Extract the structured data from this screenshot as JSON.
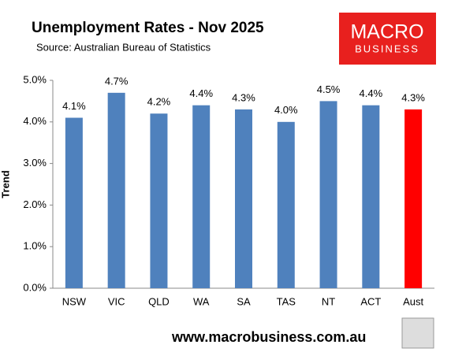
{
  "chart_data": {
    "type": "bar",
    "title": "Unemployment Rates - Nov 2025",
    "subtitle": "Source: Australian Bureau of Statistics",
    "logo": {
      "line1": "MACRO",
      "line2": "BUSINESS"
    },
    "footer": "www.macrobusiness.com.au",
    "y_label": "Trend",
    "categories": [
      "NSW",
      "VIC",
      "QLD",
      "WA",
      "SA",
      "TAS",
      "NT",
      "ACT",
      "Aust"
    ],
    "values": [
      4.1,
      4.7,
      4.2,
      4.4,
      4.3,
      4.0,
      4.5,
      4.4,
      4.3
    ],
    "value_labels": [
      "4.1%",
      "4.7%",
      "4.2%",
      "4.4%",
      "4.3%",
      "4.0%",
      "4.5%",
      "4.4%",
      "4.3%"
    ],
    "colors": [
      "#4f81bd",
      "#4f81bd",
      "#4f81bd",
      "#4f81bd",
      "#4f81bd",
      "#4f81bd",
      "#4f81bd",
      "#4f81bd",
      "#ff0000"
    ],
    "ylim": [
      0,
      5
    ],
    "yticks": [
      {
        "value": 0,
        "label": "0.0%"
      },
      {
        "value": 1,
        "label": "1.0%"
      },
      {
        "value": 2,
        "label": "2.0%"
      },
      {
        "value": 3,
        "label": "3.0%"
      },
      {
        "value": 4,
        "label": "4.0%"
      },
      {
        "value": 5,
        "label": "5.0%"
      }
    ],
    "grid": false
  }
}
